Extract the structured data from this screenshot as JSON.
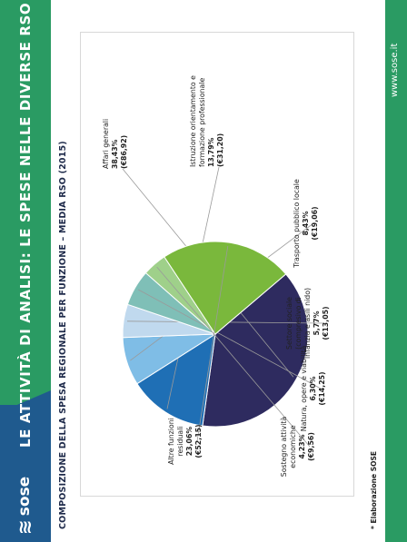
{
  "header": {
    "title": "LE ATTIVITÀ DI ANALISI: LE SPESE NELLE DIVERSE RSO",
    "logo_text": "sose",
    "logo_icon": "sose-logo-icon",
    "website": "www.sose.it"
  },
  "subtitle": "COMPOSIZIONE DELLA SPESA REGIONALE PER FUNZIONE – MEDIA RSO (2015)",
  "source": "* Elaborazione SOSE",
  "colors": {
    "band": "#2a9b63",
    "logo_band": "#1f5a8e",
    "text_dark": "#1e2a4a"
  },
  "chart_data": {
    "type": "pie",
    "title": "",
    "slices": [
      {
        "label": "Affari generali",
        "percent_label": "38,43%",
        "amount_label": "(€86,92)",
        "value": 38.43,
        "color": "#2e2b5f"
      },
      {
        "label": "Istruzione orientamento e formazione professionale",
        "percent_label": "13,79%",
        "amount_label": "(€31,20)",
        "value": 13.79,
        "color": "#1f6fb5"
      },
      {
        "label": "Trasporto pubblico locale",
        "percent_label": "8,43%",
        "amount_label": "(€19,06)",
        "value": 8.43,
        "color": "#7fbde6"
      },
      {
        "label": "Settore sociale (compresivo di infanzia e asili nido)",
        "percent_label": "5,77%",
        "amount_label": "(€13,05)",
        "value": 5.77,
        "color": "#c0d9ee"
      },
      {
        "label": "Natura, opere e viabilità",
        "percent_label": "6,30%",
        "amount_label": "(€14,25)",
        "value": 6.3,
        "color": "#7fbfb7"
      },
      {
        "label": "Sostegno attività economiche",
        "percent_label": "4,23%",
        "amount_label": "(€9,56)",
        "value": 4.23,
        "color": "#9fd08a"
      },
      {
        "label": "Altre funzioni residuali",
        "percent_label": "23,06%",
        "amount_label": "(€52,15)",
        "value": 23.06,
        "color": "#7ab83c"
      }
    ]
  }
}
